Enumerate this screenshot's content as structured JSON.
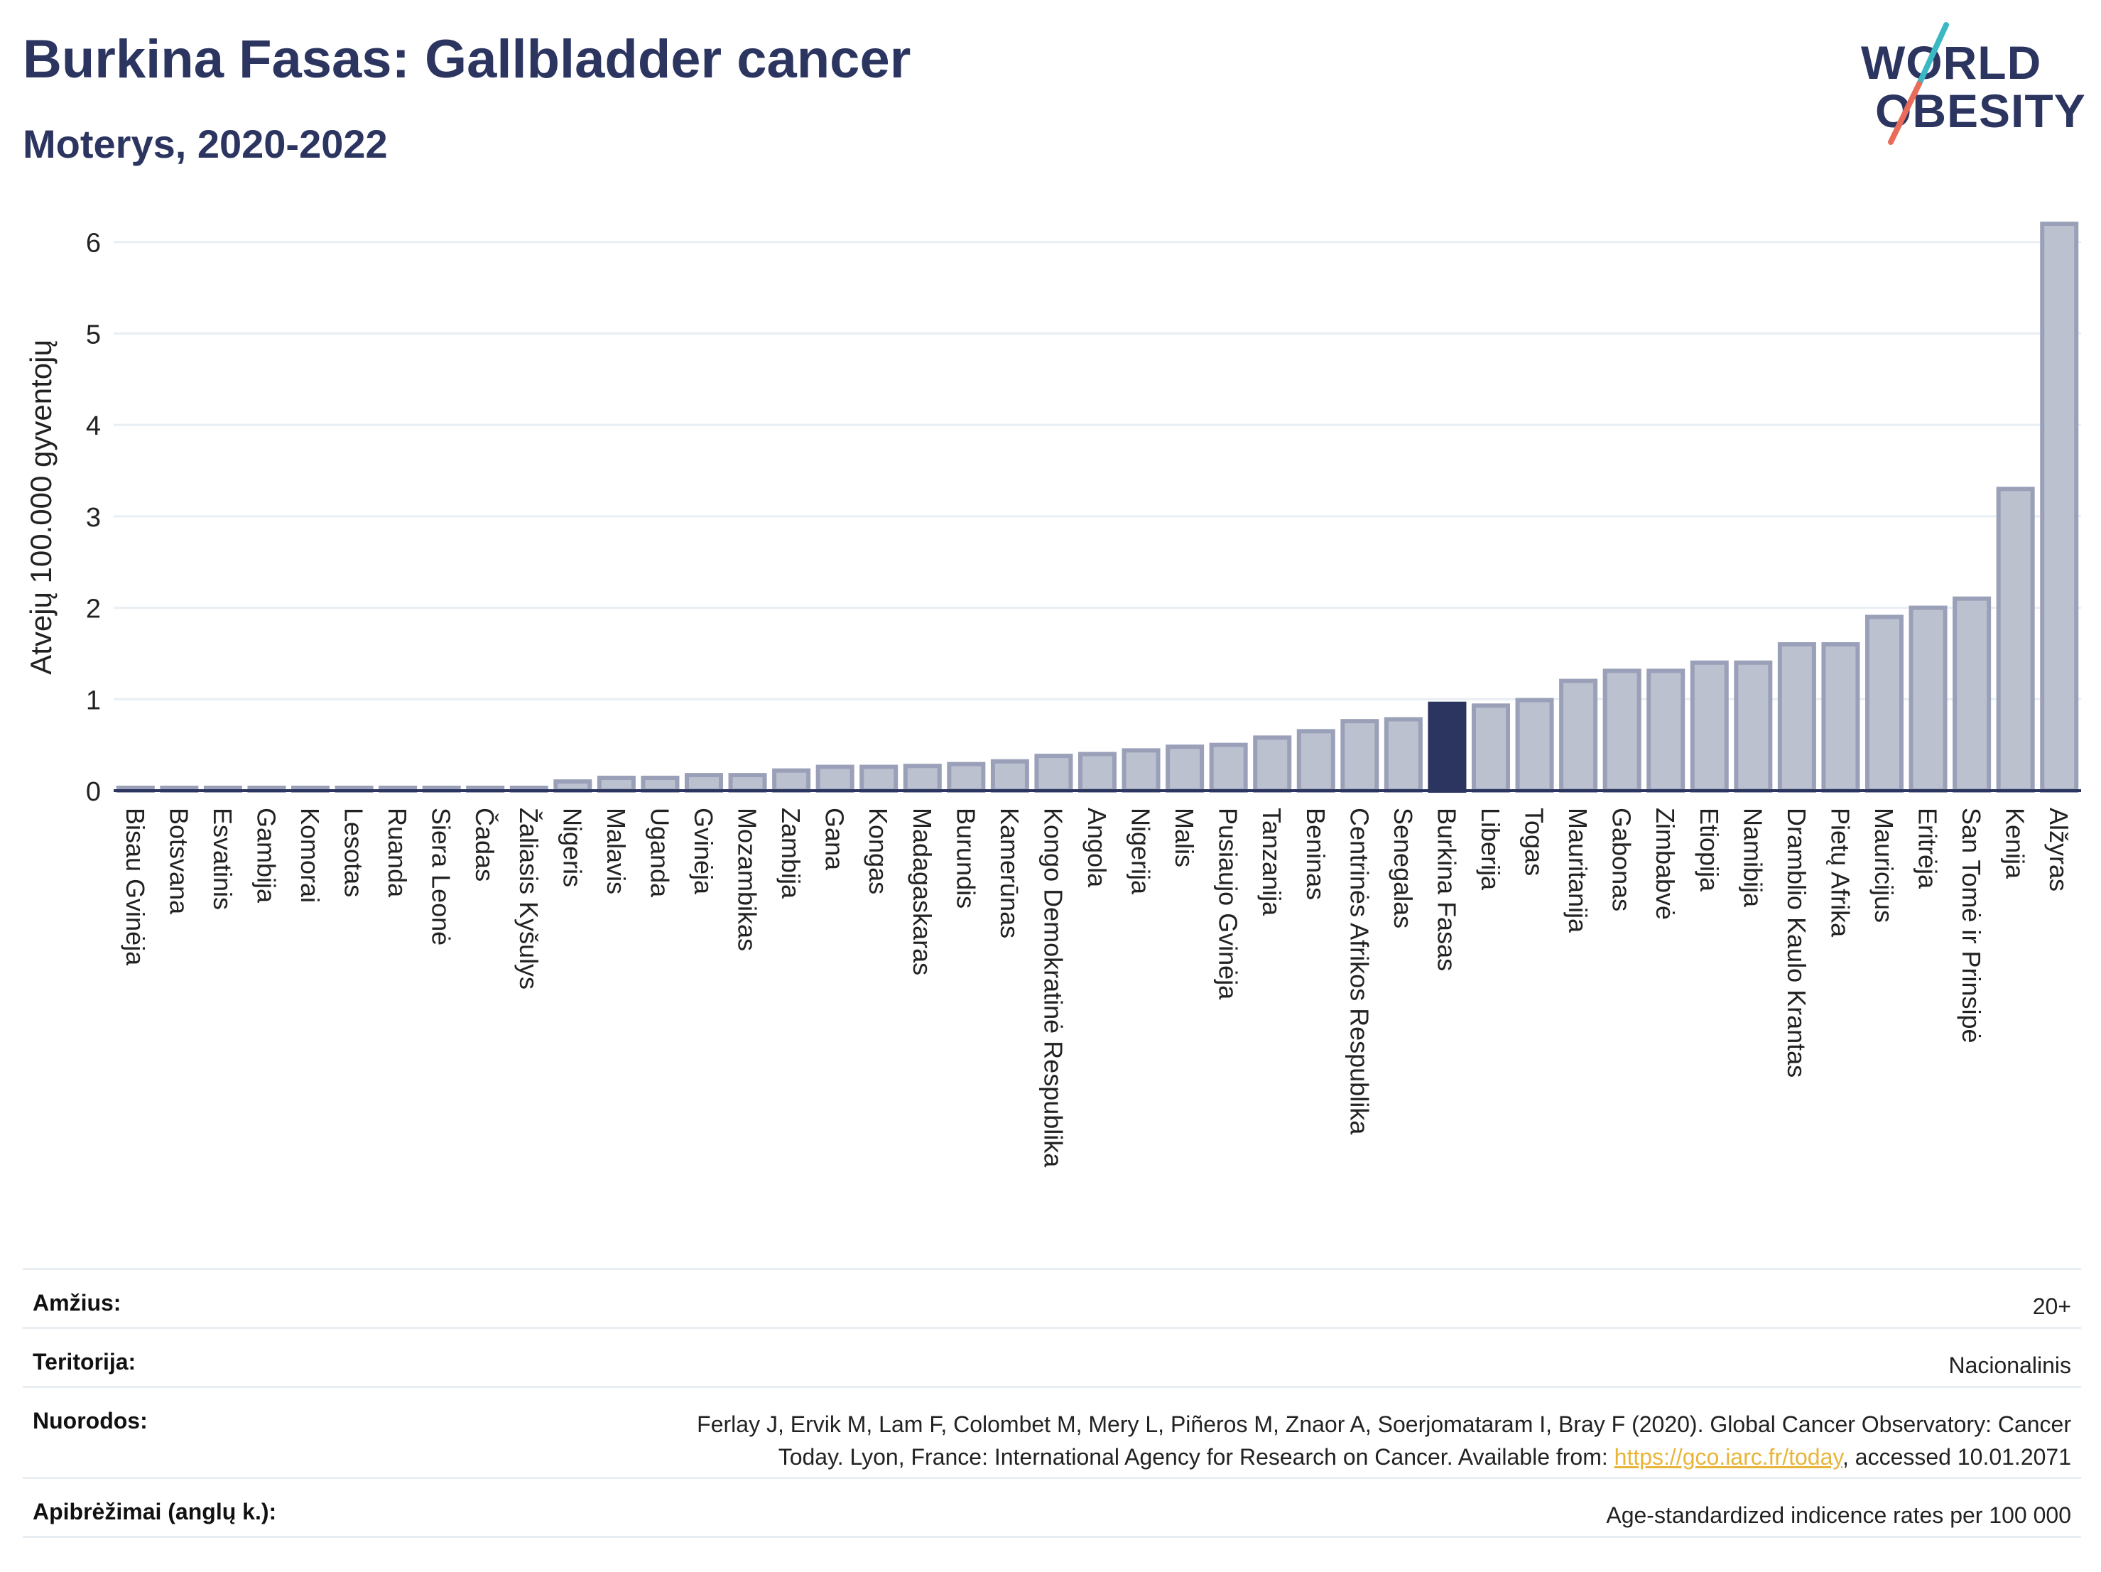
{
  "title": "Burkina Fasas: Gallbladder cancer",
  "subtitle": "Moterys, 2020-2022",
  "logo": {
    "line1": "WORLD",
    "line2": "OBESITY",
    "accent_teal": "#3bb8c4",
    "accent_coral": "#e96b5a"
  },
  "colors": {
    "bar": "#bcc1d0",
    "bar_stroke": "#9aa0b8",
    "highlight": "#2b3560",
    "grid": "#e8eef2",
    "axis": "#2b3560"
  },
  "chart_data": {
    "type": "bar",
    "ylabel": "Atvejų 100.000 gyventojų",
    "xlabel": "",
    "ylim": [
      0,
      6.2
    ],
    "yticks": [
      0,
      1,
      2,
      3,
      4,
      5,
      6
    ],
    "highlight": "Burkina Fasas",
    "categories": [
      "Bisau Gvinėja",
      "Botsvana",
      "Esvatinis",
      "Gambija",
      "Komorai",
      "Lesotas",
      "Ruanda",
      "Siera Leonė",
      "Čadas",
      "Žaliasis Kyšulys",
      "Nigeris",
      "Malavis",
      "Uganda",
      "Gvinėja",
      "Mozambikas",
      "Zambija",
      "Gana",
      "Kongas",
      "Madagaskaras",
      "Burundis",
      "Kamerūnas",
      "Kongo Demokratinė Respublika",
      "Angola",
      "Nigerija",
      "Malis",
      "Pusiaujo Gvinėja",
      "Tanzanija",
      "Beninas",
      "Centrinės Afrikos Respublika",
      "Senegalas",
      "Burkina Fasas",
      "Liberija",
      "Togas",
      "Mauritanija",
      "Gabonas",
      "Zimbabvė",
      "Etiopija",
      "Namibija",
      "Dramblio Kaulo Krantas",
      "Pietų Afrika",
      "Mauricijus",
      "Eritrėja",
      "San Tomė ir Prinsipė",
      "Kenija",
      "Alžyras"
    ],
    "values": [
      0.01,
      0.01,
      0.01,
      0.01,
      0.01,
      0.01,
      0.01,
      0.01,
      0.01,
      0.01,
      0.1,
      0.14,
      0.14,
      0.17,
      0.17,
      0.22,
      0.26,
      0.26,
      0.27,
      0.29,
      0.32,
      0.38,
      0.4,
      0.44,
      0.48,
      0.5,
      0.58,
      0.65,
      0.76,
      0.78,
      0.95,
      0.93,
      0.99,
      1.2,
      1.31,
      1.31,
      1.4,
      1.4,
      1.6,
      1.6,
      1.9,
      2.0,
      2.1,
      3.3,
      6.2
    ]
  },
  "footer": {
    "age_label": "Amžius:",
    "age_value": "20+",
    "territory_label": "Teritorija:",
    "territory_value": "Nacionalinis",
    "refs_label": "Nuorodos:",
    "refs_text_1": "Ferlay J, Ervik M, Lam F, Colombet M, Mery L, Piñeros M, Znaor A, Soerjomataram I, Bray F (2020). Global Cancer Observatory: Cancer",
    "refs_text_2": "Today. Lyon, France: International Agency for Research on Cancer. Available from: ",
    "refs_link": "https://gco.iarc.fr/today",
    "refs_text_3": ", accessed 10.01.2071",
    "def_label": "Apibrėžimai (anglų k.):",
    "def_value": "Age-standardized indicence rates per 100 000"
  }
}
